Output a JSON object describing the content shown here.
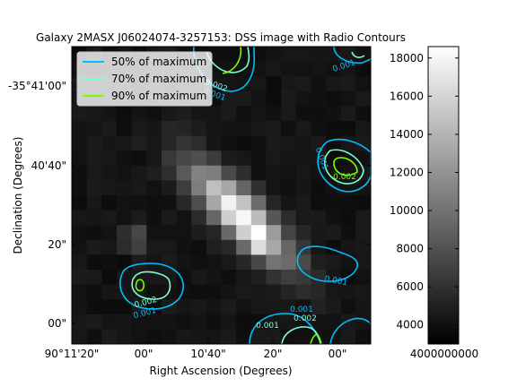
{
  "chart_data": {
    "type": "heatmap",
    "title": "Galaxy 2MASX J06024074-3257153: DSS image with Radio Contours",
    "xlabel": "Right Ascension (Degrees)",
    "ylabel": "Declination (Degrees)",
    "x_ticks": [
      "90°11'20\"",
      "00\"",
      "10'40\"",
      "20\"",
      "00\""
    ],
    "y_ticks": [
      "-35°41'00\"",
      "40'40\"",
      "20\"",
      "00\""
    ],
    "colorbar": {
      "range": [
        3000,
        18600
      ],
      "ticks": [
        4000,
        6000,
        8000,
        10000,
        12000,
        14000,
        16000,
        18000
      ],
      "tick_labels": [
        "4000",
        "6000",
        "8000",
        "10000",
        "12000",
        "14000",
        "16000",
        "18000"
      ],
      "bottom_label": "4000000000",
      "colormap": "gray"
    },
    "image_grid": {
      "rows": 20,
      "cols": 20,
      "background_level": 4200,
      "features": [
        {
          "name": "galaxy",
          "peak": 18500,
          "center_row": 10.8,
          "center_col": 10.8,
          "extent": "elongated, NE-SW"
        },
        {
          "name": "star",
          "peak": 9000,
          "center_row": 12.5,
          "center_col": 3.8
        },
        {
          "name": "knot",
          "peak": 8500,
          "center_row": 12.7,
          "center_col": 11.9
        }
      ]
    },
    "series": [
      {
        "name": "50% of maximum",
        "color": "#00bfff",
        "level": 0.001
      },
      {
        "name": "70% of maximum",
        "color": "#7fffd4",
        "level": 0.002
      },
      {
        "name": "90% of maximum",
        "color": "#7cfc00",
        "level": 0.003
      }
    ],
    "contour_labels": [
      "0.002",
      "0.001",
      "0.001",
      "0.001",
      "0.002",
      "0.001",
      "0.002",
      "0.001",
      "0.001",
      "0.002",
      "0.001",
      "0.001",
      "0.002"
    ],
    "legend_position": "upper-left",
    "grid": false
  }
}
